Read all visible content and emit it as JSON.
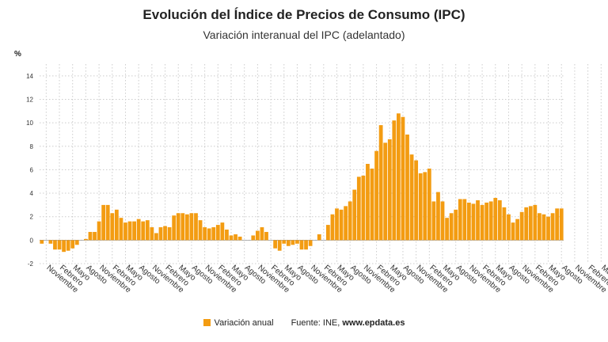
{
  "colors": {
    "bar": "#F39C12",
    "grid": "#cccccc",
    "text": "#222222"
  },
  "chart_data": {
    "type": "bar",
    "title": "Evolución del Índice de Precios de Consumo (IPC)",
    "subtitle": "Variación interanual del IPC (adelantado)",
    "ylabel": "%",
    "ylim": [
      -2,
      15
    ],
    "yticks": [
      -2,
      0,
      2,
      4,
      6,
      8,
      10,
      12,
      14
    ],
    "grid": true,
    "legend_position": "bottom",
    "x_tick_labels": [
      "Noviembre",
      "Febrero",
      "Mayo",
      "Agosto",
      "Noviembre",
      "Febrero",
      "Mayo",
      "Agosto",
      "Noviembre",
      "Febrero",
      "Mayo",
      "Agosto",
      "Noviembre",
      "Febrero",
      "Mayo",
      "Agosto",
      "Noviembre",
      "Febrero",
      "Mayo",
      "Agosto",
      "Noviembre",
      "Febrero",
      "Mayo",
      "Agosto",
      "Noviembre",
      "Febrero",
      "Mayo",
      "Agosto",
      "Noviembre",
      "Febrero",
      "Mayo",
      "Agosto",
      "Noviembre",
      "Febrero",
      "Mayo",
      "Agosto",
      "Noviembre",
      "Febrero",
      "Mayo",
      "Agosto",
      "Noviembre",
      "Febrero",
      "Mayo",
      "Agosto",
      "Noviembre",
      "Febrero",
      "Mayo",
      "Agosto",
      "Noviembre",
      "Febrero",
      "Mayo",
      "Agosto",
      "Noviembre",
      "Febrero",
      "Mayo",
      "Agosto"
    ],
    "series": [
      {
        "name": "Variación anual",
        "values": [
          -0.3,
          0,
          -0.3,
          -0.8,
          -0.8,
          -1,
          -0.9,
          -0.7,
          -0.4,
          0,
          0.1,
          0.7,
          0.7,
          1.6,
          3,
          3,
          2.3,
          2.6,
          1.9,
          1.5,
          1.6,
          1.6,
          1.8,
          1.6,
          1.7,
          1.1,
          0.6,
          1.1,
          1.2,
          1.1,
          2.1,
          2.3,
          2.3,
          2.2,
          2.3,
          2.3,
          1.7,
          1.1,
          1,
          1.1,
          1.3,
          1.5,
          0.9,
          0.4,
          0.5,
          0.3,
          0,
          0,
          0.4,
          0.8,
          1.1,
          0.7,
          0,
          -0.7,
          -0.9,
          -0.3,
          -0.5,
          -0.4,
          -0.3,
          -0.8,
          -0.8,
          -0.5,
          0,
          0.5,
          0,
          1.3,
          2.2,
          2.7,
          2.6,
          2.9,
          3.3,
          4.3,
          5.4,
          5.5,
          6.5,
          6.1,
          7.6,
          9.8,
          8.3,
          8.6,
          10.2,
          10.8,
          10.5,
          9,
          7.3,
          6.8,
          5.7,
          5.8,
          6.1,
          3.3,
          4.1,
          3.3,
          1.9,
          2.3,
          2.6,
          3.5,
          3.5,
          3.2,
          3.1,
          3.4,
          3,
          3.2,
          3.3,
          3.6,
          3.4,
          2.8,
          2.2,
          1.5,
          1.8,
          2.4,
          2.8,
          2.9,
          3,
          2.3,
          2.2,
          2,
          2.3,
          2.7,
          2.7
        ]
      }
    ]
  },
  "legend": {
    "series_label": "Variación anual"
  },
  "source": {
    "prefix": "Fuente: INE, ",
    "site": "www.epdata.es"
  }
}
